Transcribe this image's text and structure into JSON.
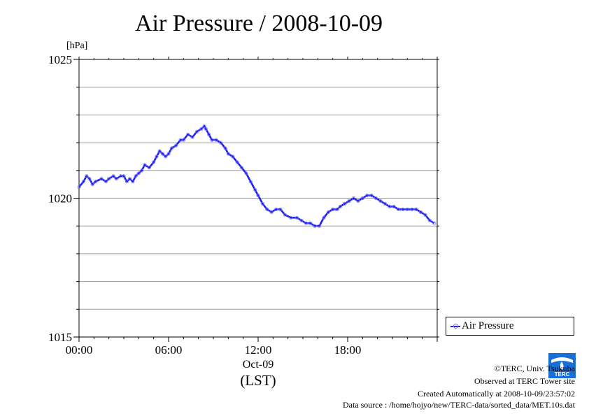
{
  "title": "Air Pressure / 2008-10-09",
  "legend": {
    "label": "Air Pressure"
  },
  "credits": {
    "line1": "©TERC, Univ. Tsukuba",
    "line2": "Observed at TERC Tower site",
    "line3": "Created Automatically at 2008-10-09/23:57:02",
    "line4": "Data source : /home/hojyo/new/TERC-data/sorted_data/MET.10s.dat"
  },
  "logo": {
    "icon": "terc-logo-icon",
    "text": "TERC"
  },
  "colors": {
    "series": "#1f1ff0",
    "marker": "#7a7aff",
    "grid": "#9a9a9a"
  },
  "chart_data": {
    "type": "line",
    "title": "Air Pressure / 2008-10-09",
    "ylabel": "[hPa]",
    "xlabel": "(LST)",
    "date_label": "Oct-09",
    "xlim": [
      0,
      24
    ],
    "ylim": [
      1015,
      1025
    ],
    "x_ticks": [
      {
        "value": 0,
        "label": "00:00"
      },
      {
        "value": 6,
        "label": "06:00"
      },
      {
        "value": 12,
        "label": "12:00"
      },
      {
        "value": 18,
        "label": "18:00"
      }
    ],
    "y_ticks": [
      {
        "value": 1015,
        "label": "1015"
      },
      {
        "value": 1020,
        "label": "1020"
      },
      {
        "value": 1025,
        "label": "1025"
      }
    ],
    "y_grid": [
      1015,
      1016,
      1017,
      1018,
      1019,
      1020,
      1021,
      1022,
      1023,
      1024,
      1025
    ],
    "grid": true,
    "legend_position": "right-bottom",
    "series": [
      {
        "name": "Air Pressure",
        "x": [
          0,
          0.3,
          0.5,
          0.7,
          0.9,
          1.1,
          1.5,
          1.8,
          2.0,
          2.3,
          2.5,
          2.8,
          3.0,
          3.2,
          3.4,
          3.6,
          3.8,
          4.0,
          4.2,
          4.4,
          4.7,
          5.0,
          5.2,
          5.4,
          5.6,
          5.8,
          6.0,
          6.2,
          6.5,
          6.8,
          7.0,
          7.3,
          7.6,
          7.9,
          8.2,
          8.4,
          8.5,
          8.7,
          8.9,
          9.2,
          9.5,
          9.8,
          10.0,
          10.3,
          10.6,
          10.9,
          11.2,
          11.5,
          11.8,
          12.0,
          12.3,
          12.6,
          12.9,
          13.2,
          13.5,
          13.8,
          14.2,
          14.6,
          14.9,
          15.2,
          15.5,
          15.8,
          16.1,
          16.4,
          16.7,
          17.0,
          17.3,
          17.5,
          17.8,
          18.1,
          18.4,
          18.7,
          19.0,
          19.3,
          19.6,
          19.9,
          20.2,
          20.5,
          20.8,
          21.1,
          21.4,
          21.7,
          22.0,
          22.3,
          22.6,
          22.9,
          23.2,
          23.5,
          23.8
        ],
        "values": [
          1020.4,
          1020.6,
          1020.8,
          1020.7,
          1020.5,
          1020.6,
          1020.7,
          1020.6,
          1020.7,
          1020.8,
          1020.7,
          1020.8,
          1020.8,
          1020.6,
          1020.7,
          1020.6,
          1020.8,
          1020.9,
          1021.0,
          1021.2,
          1021.1,
          1021.3,
          1021.5,
          1021.7,
          1021.6,
          1021.5,
          1021.6,
          1021.8,
          1021.9,
          1022.1,
          1022.1,
          1022.3,
          1022.2,
          1022.4,
          1022.5,
          1022.6,
          1022.5,
          1022.3,
          1022.1,
          1022.1,
          1022.0,
          1021.8,
          1021.6,
          1021.5,
          1021.3,
          1021.1,
          1020.9,
          1020.6,
          1020.3,
          1020.1,
          1019.8,
          1019.6,
          1019.5,
          1019.6,
          1019.6,
          1019.4,
          1019.3,
          1019.3,
          1019.2,
          1019.1,
          1019.1,
          1019.0,
          1019.0,
          1019.3,
          1019.5,
          1019.6,
          1019.6,
          1019.7,
          1019.8,
          1019.9,
          1020.0,
          1019.9,
          1020.0,
          1020.1,
          1020.1,
          1020.0,
          1019.9,
          1019.8,
          1019.7,
          1019.7,
          1019.6,
          1019.6,
          1019.6,
          1019.6,
          1019.6,
          1019.5,
          1019.4,
          1019.2,
          1019.1
        ]
      }
    ]
  }
}
